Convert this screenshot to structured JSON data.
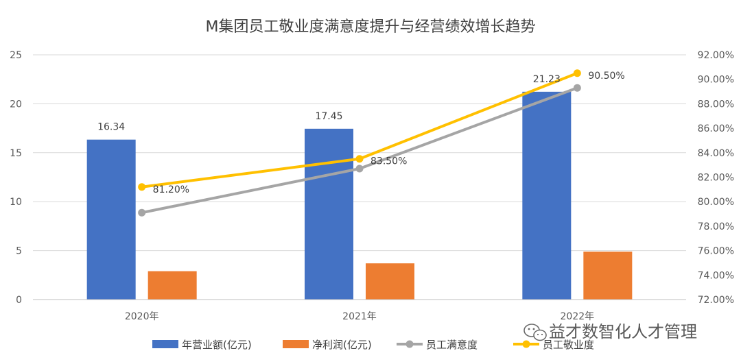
{
  "chart_data": {
    "type": "bar",
    "title": "M集团员工敬业度满意度提升与经营绩效增长趋势",
    "categories": [
      "2020年",
      "2021年",
      "2022年"
    ],
    "ylim_left": [
      0,
      25
    ],
    "yticks_left": [
      "0",
      "5",
      "10",
      "15",
      "20",
      "25"
    ],
    "ylim_right": [
      0.72,
      0.92
    ],
    "yticks_right": [
      "72.00%",
      "74.00%",
      "76.00%",
      "78.00%",
      "80.00%",
      "82.00%",
      "84.00%",
      "86.00%",
      "88.00%",
      "90.00%",
      "92.00%"
    ],
    "grid": true,
    "legend_position": "bottom",
    "series": [
      {
        "name": "年营业额(亿元)",
        "kind": "bar",
        "axis": "left",
        "color": "#4472C4",
        "values": [
          16.34,
          17.45,
          21.23
        ],
        "labels": [
          "16.34",
          "17.45",
          "21.23"
        ]
      },
      {
        "name": "净利润(亿元)",
        "kind": "bar",
        "axis": "left",
        "color": "#ED7D31",
        "values": [
          2.9,
          3.7,
          4.9
        ],
        "labels": [
          "",
          "",
          ""
        ]
      },
      {
        "name": "员工满意度",
        "kind": "line",
        "axis": "right",
        "color": "#A5A5A5",
        "values": [
          0.791,
          0.827,
          0.893
        ],
        "labels": [
          "",
          "",
          ""
        ]
      },
      {
        "name": "员工敬业度",
        "kind": "line",
        "axis": "right",
        "color": "#FFC000",
        "values": [
          0.812,
          0.835,
          0.905
        ],
        "labels": [
          "81.20%",
          "83.50%",
          "90.50%"
        ]
      }
    ]
  },
  "watermark": {
    "text": "益才数智化人才管理",
    "icon": "wechat-icon"
  }
}
